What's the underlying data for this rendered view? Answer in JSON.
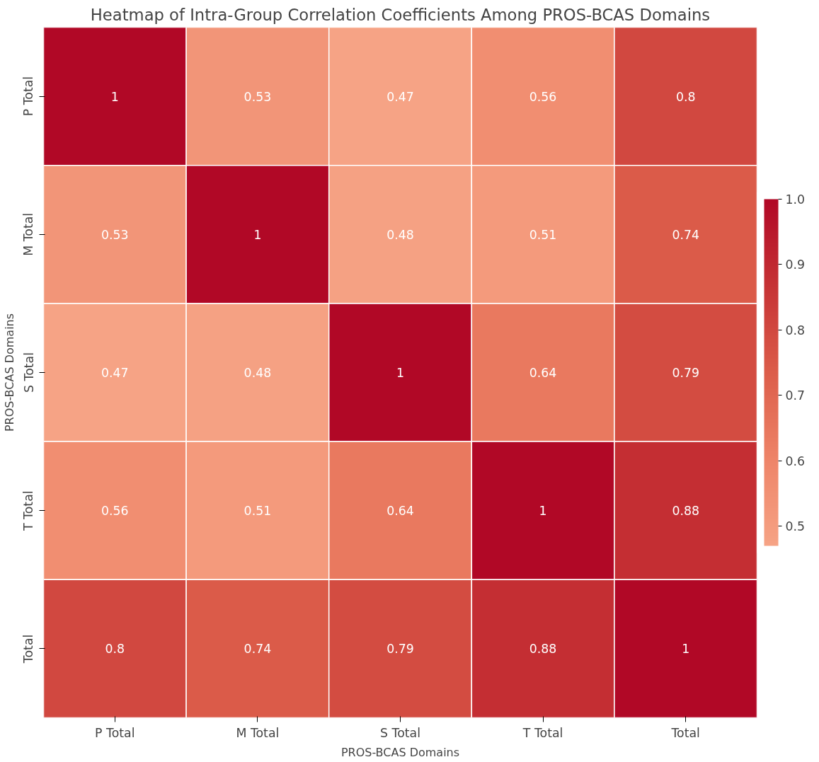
{
  "chart_data": {
    "type": "heatmap",
    "title": "Heatmap of Intra-Group Correlation Coefficients Among PROS-BCAS Domains",
    "xlabel": "PROS-BCAS Domains",
    "ylabel": "PROS-BCAS Domains",
    "categories": [
      "P Total",
      "M Total",
      "S Total",
      "T Total",
      "Total"
    ],
    "y_categories": [
      "P Total",
      "M Total",
      "S Total",
      "T Total",
      "Total"
    ],
    "cells": [
      [
        1,
        0.53,
        0.47,
        0.56,
        0.8
      ],
      [
        0.53,
        1,
        0.48,
        0.51,
        0.74
      ],
      [
        0.47,
        0.48,
        1,
        0.64,
        0.79
      ],
      [
        0.56,
        0.51,
        0.64,
        1,
        0.88
      ],
      [
        0.8,
        0.74,
        0.79,
        0.88,
        1
      ]
    ],
    "data_labels": true,
    "clim": [
      0.47,
      1.0
    ],
    "cticks": [
      0.5,
      0.6,
      0.7,
      0.8,
      0.9,
      {
        "value": 1.0,
        "label": "1.0"
      }
    ]
  }
}
